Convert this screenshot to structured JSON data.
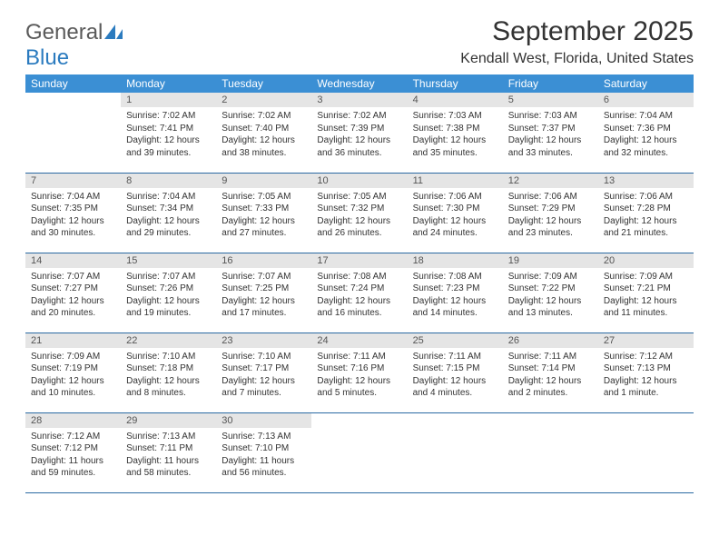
{
  "logo": {
    "text1": "General",
    "text2": "Blue"
  },
  "title": "September 2025",
  "subtitle": "Kendall West, Florida, United States",
  "colors": {
    "header_bg": "#3b8fd4",
    "header_fg": "#ffffff",
    "daynum_bg": "#e5e5e5",
    "daynum_fg": "#555555",
    "border": "#2b6aa3",
    "text": "#333333",
    "logo_gray": "#5a5a5a",
    "logo_blue": "#2b7bbf"
  },
  "weekdays": [
    "Sunday",
    "Monday",
    "Tuesday",
    "Wednesday",
    "Thursday",
    "Friday",
    "Saturday"
  ],
  "weeks": [
    [
      null,
      {
        "n": "1",
        "sunrise": "7:02 AM",
        "sunset": "7:41 PM",
        "daylight": "12 hours and 39 minutes."
      },
      {
        "n": "2",
        "sunrise": "7:02 AM",
        "sunset": "7:40 PM",
        "daylight": "12 hours and 38 minutes."
      },
      {
        "n": "3",
        "sunrise": "7:02 AM",
        "sunset": "7:39 PM",
        "daylight": "12 hours and 36 minutes."
      },
      {
        "n": "4",
        "sunrise": "7:03 AM",
        "sunset": "7:38 PM",
        "daylight": "12 hours and 35 minutes."
      },
      {
        "n": "5",
        "sunrise": "7:03 AM",
        "sunset": "7:37 PM",
        "daylight": "12 hours and 33 minutes."
      },
      {
        "n": "6",
        "sunrise": "7:04 AM",
        "sunset": "7:36 PM",
        "daylight": "12 hours and 32 minutes."
      }
    ],
    [
      {
        "n": "7",
        "sunrise": "7:04 AM",
        "sunset": "7:35 PM",
        "daylight": "12 hours and 30 minutes."
      },
      {
        "n": "8",
        "sunrise": "7:04 AM",
        "sunset": "7:34 PM",
        "daylight": "12 hours and 29 minutes."
      },
      {
        "n": "9",
        "sunrise": "7:05 AM",
        "sunset": "7:33 PM",
        "daylight": "12 hours and 27 minutes."
      },
      {
        "n": "10",
        "sunrise": "7:05 AM",
        "sunset": "7:32 PM",
        "daylight": "12 hours and 26 minutes."
      },
      {
        "n": "11",
        "sunrise": "7:06 AM",
        "sunset": "7:30 PM",
        "daylight": "12 hours and 24 minutes."
      },
      {
        "n": "12",
        "sunrise": "7:06 AM",
        "sunset": "7:29 PM",
        "daylight": "12 hours and 23 minutes."
      },
      {
        "n": "13",
        "sunrise": "7:06 AM",
        "sunset": "7:28 PM",
        "daylight": "12 hours and 21 minutes."
      }
    ],
    [
      {
        "n": "14",
        "sunrise": "7:07 AM",
        "sunset": "7:27 PM",
        "daylight": "12 hours and 20 minutes."
      },
      {
        "n": "15",
        "sunrise": "7:07 AM",
        "sunset": "7:26 PM",
        "daylight": "12 hours and 19 minutes."
      },
      {
        "n": "16",
        "sunrise": "7:07 AM",
        "sunset": "7:25 PM",
        "daylight": "12 hours and 17 minutes."
      },
      {
        "n": "17",
        "sunrise": "7:08 AM",
        "sunset": "7:24 PM",
        "daylight": "12 hours and 16 minutes."
      },
      {
        "n": "18",
        "sunrise": "7:08 AM",
        "sunset": "7:23 PM",
        "daylight": "12 hours and 14 minutes."
      },
      {
        "n": "19",
        "sunrise": "7:09 AM",
        "sunset": "7:22 PM",
        "daylight": "12 hours and 13 minutes."
      },
      {
        "n": "20",
        "sunrise": "7:09 AM",
        "sunset": "7:21 PM",
        "daylight": "12 hours and 11 minutes."
      }
    ],
    [
      {
        "n": "21",
        "sunrise": "7:09 AM",
        "sunset": "7:19 PM",
        "daylight": "12 hours and 10 minutes."
      },
      {
        "n": "22",
        "sunrise": "7:10 AM",
        "sunset": "7:18 PM",
        "daylight": "12 hours and 8 minutes."
      },
      {
        "n": "23",
        "sunrise": "7:10 AM",
        "sunset": "7:17 PM",
        "daylight": "12 hours and 7 minutes."
      },
      {
        "n": "24",
        "sunrise": "7:11 AM",
        "sunset": "7:16 PM",
        "daylight": "12 hours and 5 minutes."
      },
      {
        "n": "25",
        "sunrise": "7:11 AM",
        "sunset": "7:15 PM",
        "daylight": "12 hours and 4 minutes."
      },
      {
        "n": "26",
        "sunrise": "7:11 AM",
        "sunset": "7:14 PM",
        "daylight": "12 hours and 2 minutes."
      },
      {
        "n": "27",
        "sunrise": "7:12 AM",
        "sunset": "7:13 PM",
        "daylight": "12 hours and 1 minute."
      }
    ],
    [
      {
        "n": "28",
        "sunrise": "7:12 AM",
        "sunset": "7:12 PM",
        "daylight": "11 hours and 59 minutes."
      },
      {
        "n": "29",
        "sunrise": "7:13 AM",
        "sunset": "7:11 PM",
        "daylight": "11 hours and 58 minutes."
      },
      {
        "n": "30",
        "sunrise": "7:13 AM",
        "sunset": "7:10 PM",
        "daylight": "11 hours and 56 minutes."
      },
      null,
      null,
      null,
      null
    ]
  ],
  "labels": {
    "sunrise": "Sunrise:",
    "sunset": "Sunset:",
    "daylight": "Daylight:"
  }
}
